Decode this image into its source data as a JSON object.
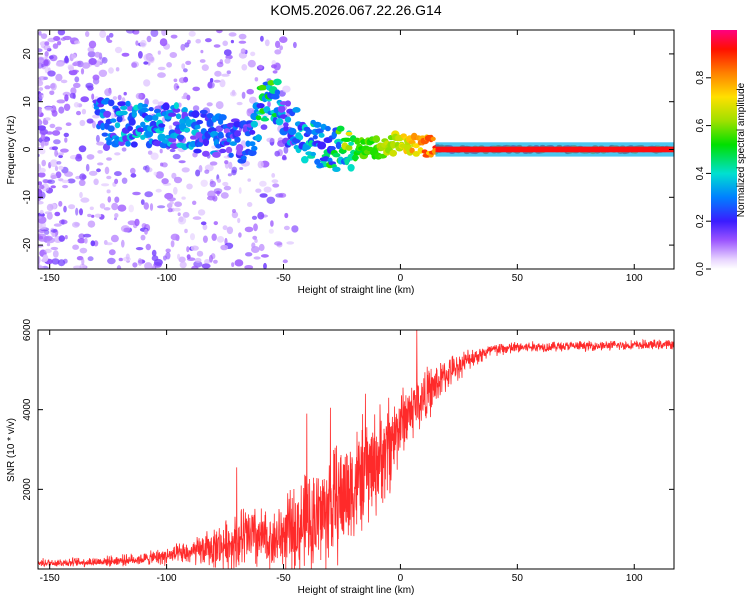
{
  "title": "KOM5.2026.067.22.26.G14",
  "colors": {
    "snr_line": "#ff2a2a",
    "axis": "#000000"
  },
  "chart_data": [
    {
      "type": "heatmap",
      "xlabel": "Height of straight line (km)",
      "ylabel": "Frequency (Hz)",
      "xlim": [
        -155,
        117
      ],
      "ylim": [
        -25,
        25
      ],
      "xticks": [
        -150,
        -100,
        -50,
        0,
        50,
        100
      ],
      "yticks": [
        -20,
        -10,
        0,
        10,
        20
      ],
      "colorbar": {
        "label": "Normalized spectral amplitude",
        "range": [
          0.0,
          1.0
        ],
        "ticks": [
          "0.0",
          "0.2",
          "0.4",
          "0.6",
          "0.8"
        ]
      },
      "ridge": [
        {
          "x": -128,
          "f": 6.0,
          "amp": 0.3
        },
        {
          "x": -110,
          "f": 5.0,
          "amp": 0.3
        },
        {
          "x": -95,
          "f": 5.0,
          "amp": 0.3
        },
        {
          "x": -80,
          "f": 3.0,
          "amp": 0.25
        },
        {
          "x": -65,
          "f": 1.5,
          "amp": 0.22
        },
        {
          "x": -57,
          "f": 11.0,
          "amp": 0.5
        },
        {
          "x": -50,
          "f": 6.0,
          "amp": 0.25
        },
        {
          "x": -40,
          "f": 2.0,
          "amp": 0.3
        },
        {
          "x": -30,
          "f": 0.0,
          "amp": 0.4
        },
        {
          "x": -20,
          "f": 0.0,
          "amp": 0.55
        },
        {
          "x": -10,
          "f": 0.3,
          "amp": 0.6
        },
        {
          "x": 0,
          "f": 1.5,
          "amp": 0.7
        },
        {
          "x": 10,
          "f": 0.8,
          "amp": 0.85
        },
        {
          "x": 20,
          "f": 0.0,
          "amp": 0.95
        },
        {
          "x": 60,
          "f": 0.0,
          "amp": 0.95
        },
        {
          "x": 117,
          "f": 0.0,
          "amp": 0.9
        }
      ]
    },
    {
      "type": "line",
      "xlabel": "Height of straight line (km)",
      "ylabel": "SNR (10 * v/v)",
      "xlim": [
        -155,
        117
      ],
      "ylim": [
        0,
        6000
      ],
      "xticks": [
        -150,
        -100,
        -50,
        0,
        50,
        100
      ],
      "yticks": [
        2000,
        4000,
        6000
      ],
      "series": [
        {
          "name": "SNR",
          "envelope_x": [
            -155,
            -130,
            -110,
            -90,
            -75,
            -65,
            -55,
            -45,
            -35,
            -25,
            -15,
            -5,
            0,
            10,
            20,
            30,
            40,
            50,
            60,
            80,
            100,
            117
          ],
          "envelope_mean": [
            150,
            180,
            250,
            400,
            600,
            800,
            700,
            1000,
            1300,
            1800,
            2400,
            3000,
            3700,
            4300,
            4900,
            5300,
            5500,
            5560,
            5580,
            5600,
            5620,
            5640
          ],
          "envelope_spread": [
            100,
            120,
            150,
            300,
            600,
            900,
            700,
            1100,
            1400,
            1500,
            1400,
            1200,
            900,
            700,
            400,
            250,
            180,
            150,
            130,
            120,
            120,
            120
          ],
          "spikes": [
            {
              "x": -70,
              "y": 2550
            },
            {
              "x": -40,
              "y": 3900
            },
            {
              "x": -30,
              "y": 4050
            },
            {
              "x": -15,
              "y": 4400
            },
            {
              "x": -5,
              "y": 4300
            },
            {
              "x": 7,
              "y": 6000
            }
          ]
        }
      ]
    }
  ]
}
